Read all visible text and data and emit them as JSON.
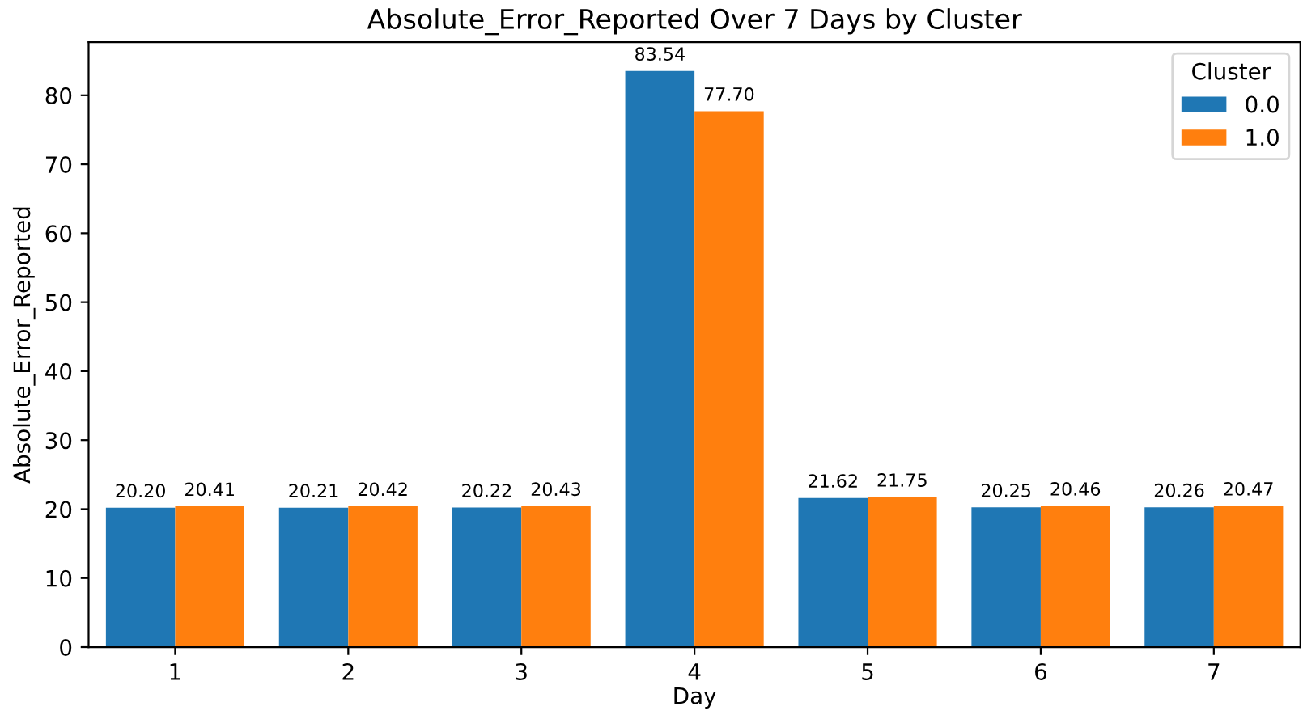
{
  "chart_data": {
    "type": "bar",
    "title": "Absolute_Error_Reported Over 7 Days by Cluster",
    "xlabel": "Day",
    "ylabel": "Absolute_Error_Reported",
    "legend_title": "Cluster",
    "categories": [
      "1",
      "2",
      "3",
      "4",
      "5",
      "6",
      "7"
    ],
    "series": [
      {
        "name": "0.0",
        "color": "#1f77b4",
        "values": [
          20.2,
          20.21,
          20.22,
          83.54,
          21.62,
          20.25,
          20.26
        ],
        "value_labels": [
          "20.20",
          "20.21",
          "20.22",
          "83.54",
          "21.62",
          "20.25",
          "20.26"
        ]
      },
      {
        "name": "1.0",
        "color": "#ff7f0e",
        "values": [
          20.41,
          20.42,
          20.43,
          77.7,
          21.75,
          20.46,
          20.47
        ],
        "value_labels": [
          "20.41",
          "20.42",
          "20.43",
          "77.70",
          "21.75",
          "20.46",
          "20.47"
        ]
      }
    ],
    "ylim": [
      0,
      87.7
    ],
    "yticks": [
      0,
      10,
      20,
      30,
      40,
      50,
      60,
      70,
      80
    ],
    "legend": "top right"
  }
}
